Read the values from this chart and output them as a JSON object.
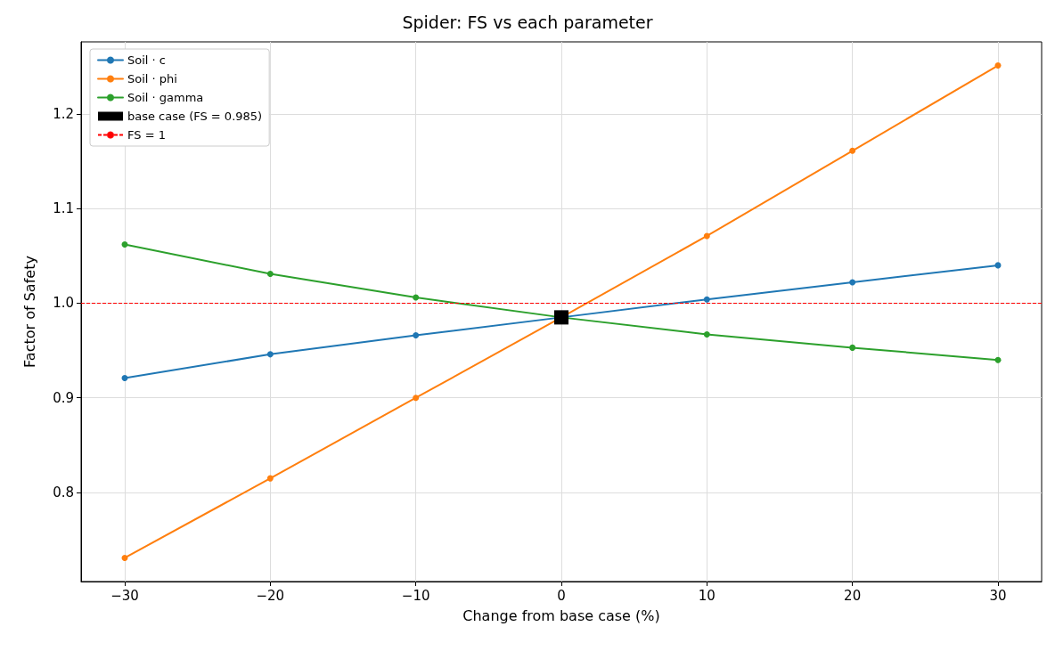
{
  "chart_data": {
    "type": "line",
    "title": "Spider: FS vs each parameter",
    "xlabel": "Change from base case (%)",
    "ylabel": "Factor of Safety",
    "x": [
      -30,
      -20,
      -10,
      0,
      10,
      20,
      30
    ],
    "series": [
      {
        "name": "Soil · c",
        "color": "#1f77b4",
        "values": [
          0.921,
          0.946,
          0.966,
          0.985,
          1.004,
          1.022,
          1.04
        ]
      },
      {
        "name": "Soil · phi",
        "color": "#ff7f0e",
        "values": [
          0.731,
          0.815,
          0.9,
          0.985,
          1.071,
          1.161,
          1.251
        ]
      },
      {
        "name": "Soil · gamma",
        "color": "#2ca02c",
        "values": [
          1.062,
          1.031,
          1.006,
          0.985,
          0.967,
          0.953,
          0.94
        ]
      },
      {
        "type": "scatter",
        "name": "base case (FS = 0.985)",
        "color": "#000000",
        "marker": "square",
        "x": [
          0
        ],
        "values": [
          0.985
        ]
      }
    ],
    "ref_lines": [
      {
        "axis": "y",
        "value": 1,
        "label": "FS = 1",
        "color": "#ff0000",
        "line_style": "dashed"
      }
    ],
    "xlim": [
      -33,
      33
    ],
    "ylim": [
      0.706,
      1.276
    ],
    "xticks": [
      {
        "value": -30,
        "label": "−30"
      },
      {
        "value": -20,
        "label": "−20"
      },
      {
        "value": -10,
        "label": "−10"
      },
      0,
      10,
      20,
      30
    ],
    "yticks": [
      0.8,
      0.9,
      {
        "value": 1,
        "label": "1.0"
      },
      1.1,
      1.2
    ],
    "grid": true,
    "legend": "top left",
    "marker": "circle",
    "line_style": "solid"
  }
}
